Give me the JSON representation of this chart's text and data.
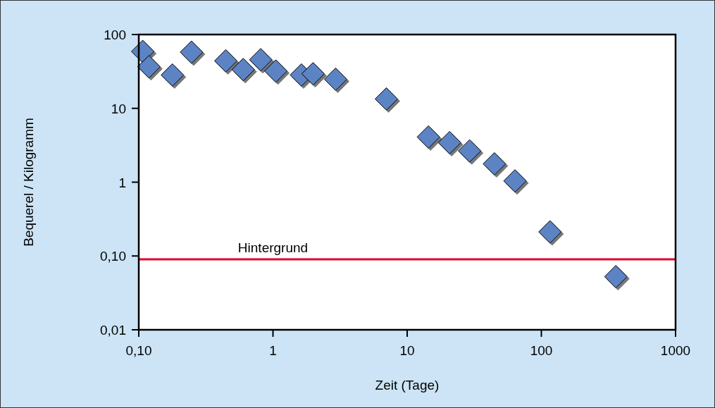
{
  "chart_data": {
    "type": "scatter",
    "xlabel": "Zeit (Tage)",
    "ylabel": "Bequerel / Kilogramm",
    "log": "xy",
    "marker": "diamond",
    "grid": false,
    "x": [
      0.107,
      0.119,
      0.178,
      0.247,
      0.445,
      0.6,
      0.81,
      1.05,
      1.63,
      1.99,
      2.93,
      7.0,
      14.4,
      20.7,
      29.2,
      44.7,
      63.6,
      116,
      359
    ],
    "series": [
      {
        "color": "#5b84c4",
        "values": [
          59,
          36.6,
          28.3,
          57.7,
          44,
          33.5,
          45.6,
          32,
          28.3,
          29.4,
          24.8,
          13.4,
          4.09,
          3.43,
          2.65,
          1.77,
          1.04,
          0.212,
          0.0525
        ]
      }
    ],
    "xlim": [
      0.1,
      1000
    ],
    "xticks": [
      {
        "value": 0.1,
        "label": "0,10"
      },
      1,
      10,
      100,
      1000
    ],
    "ylim": [
      0.01,
      100
    ],
    "yticks": [
      {
        "value": 0.01,
        "label": "0,01"
      },
      {
        "value": 0.1,
        "label": "0,10"
      },
      1,
      10,
      100
    ],
    "ref_lines": [
      {
        "axis": "y",
        "value": 0.09,
        "label": "Hintergrund",
        "color": "#e0002a"
      }
    ]
  }
}
